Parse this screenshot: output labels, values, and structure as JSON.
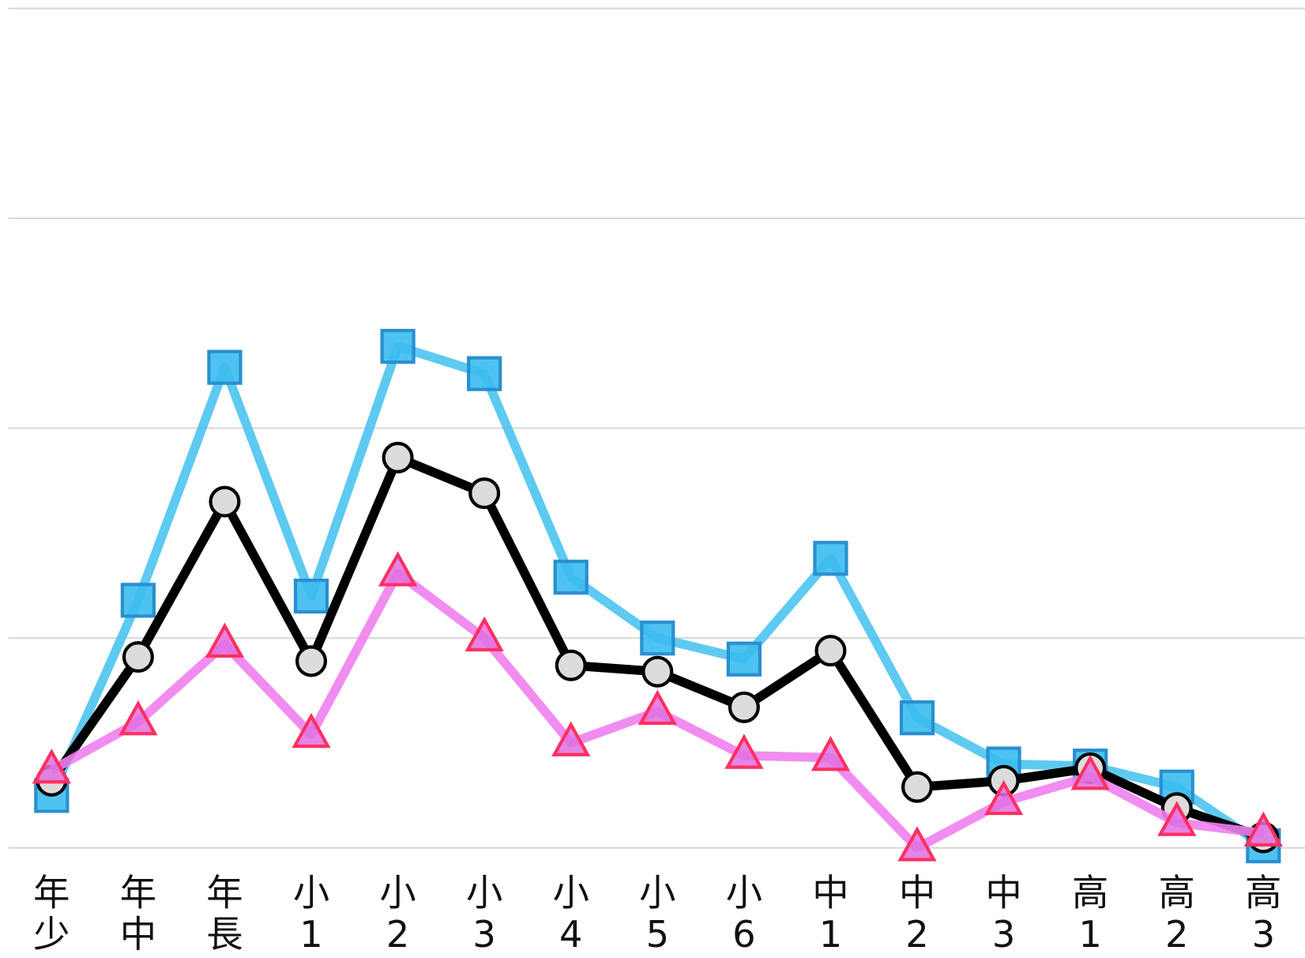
{
  "chart_data": {
    "type": "line",
    "categories": [
      [
        "年",
        "少"
      ],
      [
        "年",
        "中"
      ],
      [
        "年",
        "長"
      ],
      [
        "小",
        "1"
      ],
      [
        "小",
        "2"
      ],
      [
        "小",
        "3"
      ],
      [
        "小",
        "4"
      ],
      [
        "小",
        "5"
      ],
      [
        "小",
        "6"
      ],
      [
        "中",
        "1"
      ],
      [
        "中",
        "2"
      ],
      [
        "中",
        "3"
      ],
      [
        "高",
        "1"
      ],
      [
        "高",
        "2"
      ],
      [
        "高",
        "3"
      ]
    ],
    "series": [
      {
        "color": "#4cc4f0",
        "marker": "square",
        "values": [
          0.25,
          1.18,
          2.29,
          1.2,
          2.39,
          2.26,
          1.29,
          1.0,
          0.9,
          1.38,
          0.62,
          0.4,
          0.39,
          0.29,
          0.01
        ]
      },
      {
        "color": "#000000",
        "marker": "circle",
        "values": [
          0.32,
          0.91,
          1.65,
          0.89,
          1.86,
          1.69,
          0.87,
          0.84,
          0.67,
          0.94,
          0.29,
          0.32,
          0.38,
          0.19,
          0.05
        ]
      },
      {
        "color": "#f080f0",
        "marker": "triangle",
        "values": [
          0.37,
          0.6,
          0.97,
          0.54,
          1.31,
          1.0,
          0.5,
          0.65,
          0.44,
          0.43,
          0.0,
          0.22,
          0.34,
          0.12,
          0.07
        ]
      }
    ],
    "ylim": [
      0,
      4
    ],
    "yticks": [
      0,
      1,
      2,
      3,
      4
    ],
    "grid": true
  }
}
